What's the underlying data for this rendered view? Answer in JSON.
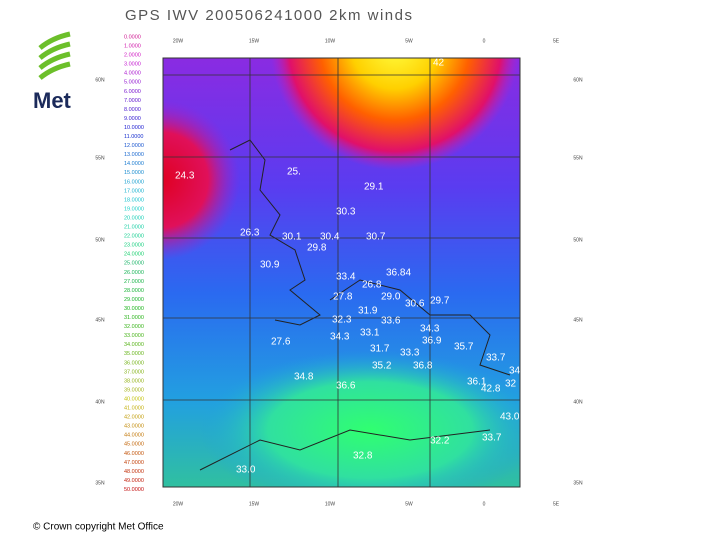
{
  "header": {
    "title": "GPS IWV 200506241000 2km winds"
  },
  "logo": {
    "text": "Met"
  },
  "footer": {
    "copyright": "© Crown copyright   Met Office"
  },
  "map": {
    "legend": [
      "0.0000",
      "1.0000",
      "2.0000",
      "3.0000",
      "4.0000",
      "5.0000",
      "6.0000",
      "7.0000",
      "8.0000",
      "9.0000",
      "10.0000",
      "11.0000",
      "12.0000",
      "13.0000",
      "14.0000",
      "15.0000",
      "16.0000",
      "17.0000",
      "18.0000",
      "19.0000",
      "20.0000",
      "21.0000",
      "22.0000",
      "23.0000",
      "24.0000",
      "25.0000",
      "26.0000",
      "27.0000",
      "28.0000",
      "29.0000",
      "30.0000",
      "31.0000",
      "32.0000",
      "33.0000",
      "34.0000",
      "35.0000",
      "36.0000",
      "37.0000",
      "38.0000",
      "39.0000",
      "40.0000",
      "41.0000",
      "42.0000",
      "43.0000",
      "44.0000",
      "45.0000",
      "46.0000",
      "47.0000",
      "48.0000",
      "49.0000",
      "50.0000"
    ],
    "top_axis": [
      "20W",
      "15W",
      "10W",
      "5W",
      "0",
      "5E"
    ],
    "bottom_axis": [
      "20W",
      "15W",
      "10W",
      "5W",
      "0",
      "5E"
    ],
    "left_axis": [
      "60N",
      "55N",
      "50N",
      "45N",
      "40N",
      "35N"
    ],
    "right_axis": [
      "60N",
      "55N",
      "50N",
      "45N",
      "40N",
      "35N"
    ],
    "station_values": [
      "24.3",
      "25.",
      "29.1",
      "30.3",
      "26.3",
      "30.1",
      "30.4",
      "30.7",
      "29.8",
      "30.9",
      "33.4",
      "36.84",
      "26.8",
      "27.8",
      "29.0",
      "30.6",
      "29.7",
      "31.9",
      "32.3",
      "33.6",
      "34.3",
      "27.6",
      "34.3",
      "33.1",
      "31.7",
      "33.3",
      "35.7",
      "36.9",
      "34.8",
      "36.6",
      "35.2",
      "36.8",
      "33.7",
      "34.8",
      "36.1",
      "32",
      "42.8",
      "43.0",
      "33.0",
      "32.2",
      "33.7",
      "32.8",
      "42"
    ]
  }
}
